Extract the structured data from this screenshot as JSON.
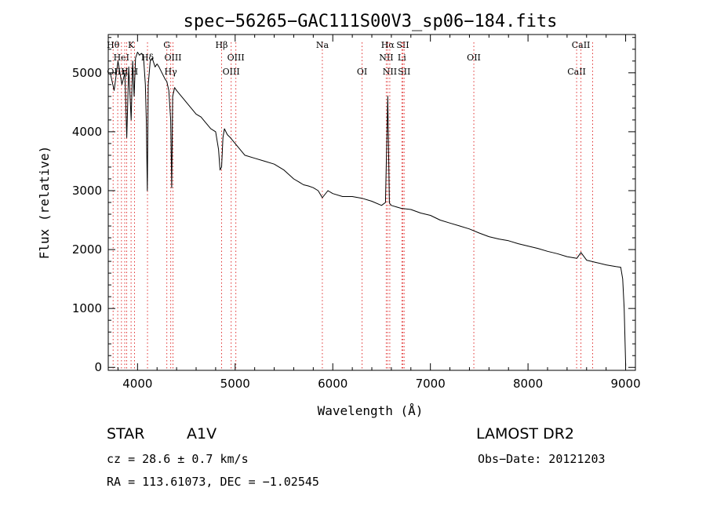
{
  "chart_data": {
    "type": "line",
    "title": "spec−56265−GAC111S00V3_sp06−184.fits",
    "xlabel": "Wavelength (Å)",
    "ylabel": "Flux (relative)",
    "xlim": [
      3700,
      9100
    ],
    "ylim": [
      -50,
      5650
    ],
    "xticks": [
      4000,
      5000,
      6000,
      7000,
      8000,
      9000
    ],
    "yticks": [
      0,
      1000,
      2000,
      3000,
      4000,
      5000
    ],
    "grid": false,
    "line_color": "#000000",
    "marker_color": "#e03030",
    "series": [
      {
        "x": [
          3720,
          3760,
          3800,
          3840,
          3870,
          3890,
          3910,
          3935,
          3950,
          3965,
          3980,
          4000,
          4020,
          4040,
          4060,
          4080,
          4090,
          4100,
          4110,
          4130,
          4150,
          4180,
          4200,
          4220,
          4250,
          4280,
          4300,
          4320,
          4340,
          4350,
          4360,
          4380,
          4400,
          4450,
          4500,
          4550,
          4600,
          4650,
          4700,
          4750,
          4800,
          4830,
          4845,
          4861,
          4875,
          4890,
          4920,
          4950,
          5000,
          5050,
          5100,
          5200,
          5300,
          5400,
          5500,
          5600,
          5650,
          5700,
          5750,
          5800,
          5850,
          5893,
          5950,
          6000,
          6100,
          6200,
          6300,
          6400,
          6500,
          6540,
          6563,
          6580,
          6600,
          6700,
          6800,
          6900,
          7000,
          7100,
          7200,
          7300,
          7400,
          7500,
          7600,
          7700,
          7800,
          7900,
          8000,
          8100,
          8200,
          8300,
          8400,
          8500,
          8542,
          8600,
          8700,
          8800,
          8900,
          8950,
          8970,
          8985,
          9000
        ],
        "y": [
          5000,
          4700,
          5200,
          4800,
          5000,
          3900,
          5100,
          4200,
          5200,
          4600,
          5250,
          5350,
          5300,
          5330,
          5300,
          4800,
          4200,
          3000,
          4800,
          5200,
          5250,
          5100,
          5150,
          5100,
          5000,
          4900,
          4850,
          4700,
          4200,
          3050,
          4600,
          4750,
          4700,
          4600,
          4500,
          4400,
          4300,
          4250,
          4150,
          4050,
          4000,
          3700,
          3350,
          3400,
          3900,
          4050,
          3950,
          3900,
          3800,
          3700,
          3600,
          3550,
          3500,
          3450,
          3350,
          3200,
          3150,
          3100,
          3080,
          3050,
          3000,
          2880,
          3000,
          2950,
          2900,
          2900,
          2870,
          2820,
          2750,
          2800,
          4600,
          2790,
          2750,
          2700,
          2680,
          2620,
          2580,
          2500,
          2450,
          2400,
          2350,
          2280,
          2220,
          2180,
          2150,
          2100,
          2060,
          2020,
          1970,
          1930,
          1880,
          1850,
          1950,
          1820,
          1780,
          1740,
          1710,
          1700,
          1500,
          1000,
          30
        ]
      }
    ],
    "markers": [
      {
        "x": 3750,
        "row": 0,
        "label": "Hθ"
      },
      {
        "x": 3797,
        "row": 2,
        "label": "OIIH"
      },
      {
        "x": 3835,
        "row": 1,
        "label": "HeI"
      },
      {
        "x": 3869,
        "row": 2,
        "label": "η"
      },
      {
        "x": 3889,
        "row": 1,
        "label": ""
      },
      {
        "x": 3934,
        "row": 0,
        "label": "K"
      },
      {
        "x": 3969,
        "row": 2,
        "label": "H"
      },
      {
        "x": 4102,
        "row": 1,
        "label": "Hδ"
      },
      {
        "x": 4300,
        "row": 0,
        "label": "G"
      },
      {
        "x": 4340,
        "row": 2,
        "label": "Hγ"
      },
      {
        "x": 4363,
        "row": 1,
        "label": "OIII"
      },
      {
        "x": 4861,
        "row": 0,
        "label": "Hβ"
      },
      {
        "x": 4959,
        "row": 2,
        "label": "OIII"
      },
      {
        "x": 5007,
        "row": 1,
        "label": "OIII"
      },
      {
        "x": 5893,
        "row": 0,
        "label": "Na"
      },
      {
        "x": 6300,
        "row": 2,
        "label": "OI"
      },
      {
        "x": 6548,
        "row": 1,
        "label": "NII"
      },
      {
        "x": 6563,
        "row": 0,
        "label": "Hα"
      },
      {
        "x": 6584,
        "row": 2,
        "label": "NII"
      },
      {
        "x": 6708,
        "row": 1,
        "label": "Li"
      },
      {
        "x": 6717,
        "row": 0,
        "label": "SII"
      },
      {
        "x": 6731,
        "row": 2,
        "label": "SII"
      },
      {
        "x": 7445,
        "row": 1,
        "label": "OII"
      },
      {
        "x": 8498,
        "row": 2,
        "label": "CaII"
      },
      {
        "x": 8542,
        "row": 0,
        "label": "CaII"
      },
      {
        "x": 8662,
        "row": 1,
        "label": ""
      }
    ]
  },
  "info": {
    "object_class": "STAR",
    "subclass": "A1V",
    "survey": "LAMOST DR2",
    "redshift": "cz = 28.6 ± 0.7 km/s",
    "obs_date": "Obs−Date: 20121203",
    "coords": "RA = 113.61073, DEC =  −1.02545"
  }
}
